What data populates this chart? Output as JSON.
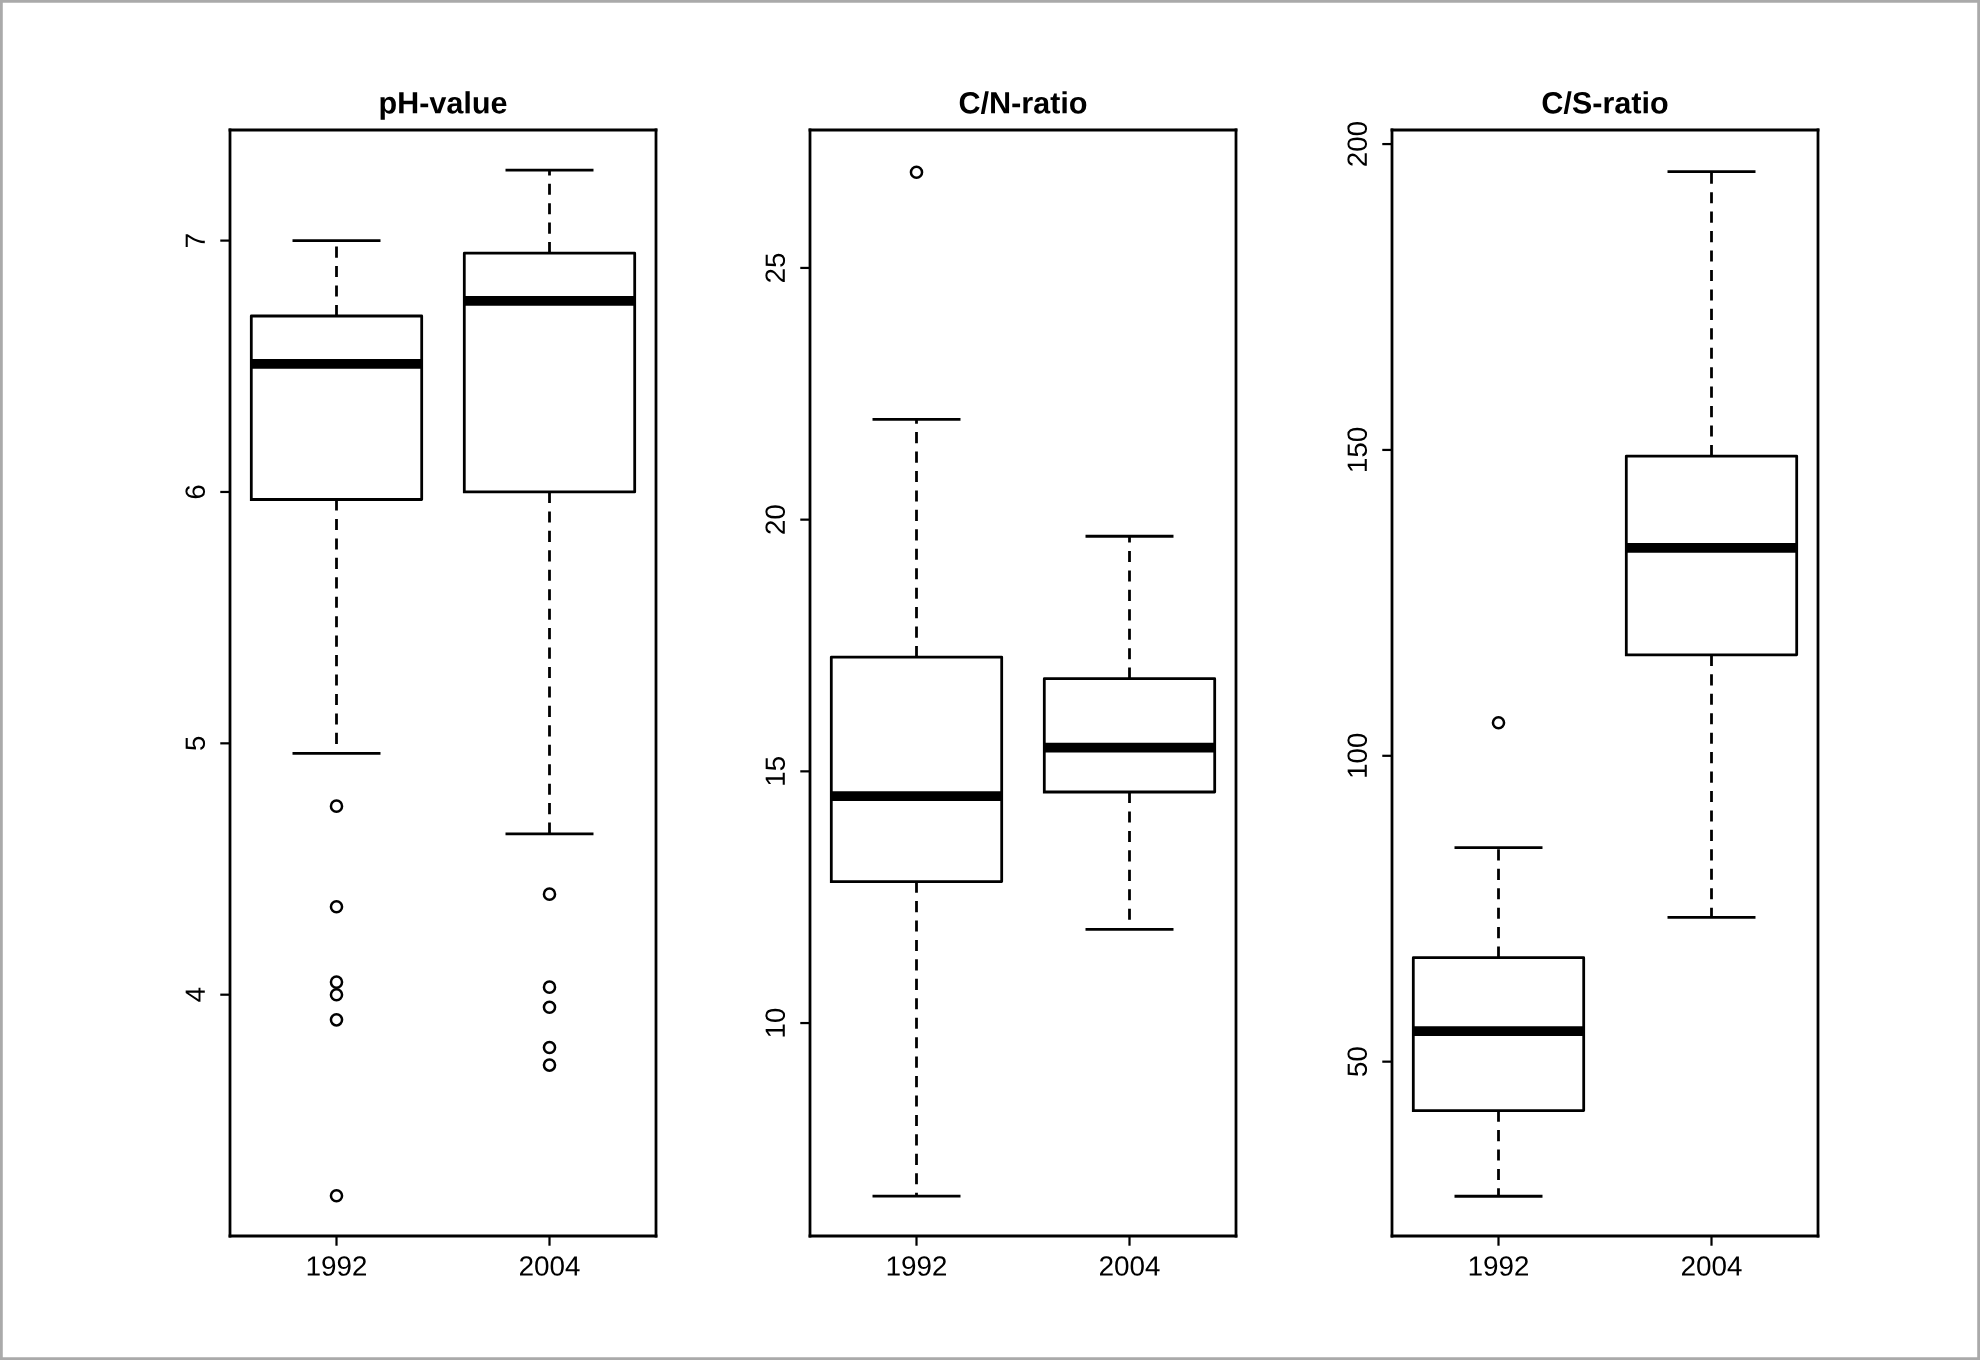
{
  "chart_data": [
    {
      "type": "box",
      "title": "pH-value",
      "categories": [
        "1992",
        "2004"
      ],
      "ylim": [
        3.04,
        7.44
      ],
      "yticks": [
        4,
        5,
        6,
        7
      ],
      "boxes": [
        {
          "low": 4.96,
          "q1": 5.97,
          "median": 6.51,
          "q3": 6.7,
          "high": 7.0,
          "outliers": [
            4.75,
            4.35,
            4.05,
            4.0,
            3.9,
            3.2
          ]
        },
        {
          "low": 4.64,
          "q1": 6.0,
          "median": 6.76,
          "q3": 6.95,
          "high": 7.28,
          "outliers": [
            4.4,
            4.03,
            3.95,
            3.79,
            3.72
          ]
        }
      ]
    },
    {
      "type": "box",
      "title": "C/N-ratio",
      "categories": [
        "1992",
        "2004"
      ],
      "ylim": [
        5.77,
        27.74
      ],
      "yticks": [
        10,
        15,
        20,
        25
      ],
      "boxes": [
        {
          "low": 6.56,
          "q1": 12.81,
          "median": 14.51,
          "q3": 17.27,
          "high": 21.99,
          "outliers": [
            26.9
          ]
        },
        {
          "low": 11.86,
          "q1": 14.59,
          "median": 15.47,
          "q3": 16.84,
          "high": 19.67
        }
      ]
    },
    {
      "type": "box",
      "title": "C/S-ratio",
      "categories": [
        "1992",
        "2004"
      ],
      "ylim": [
        21.5,
        202.3
      ],
      "yticks": [
        50,
        100,
        150,
        200
      ],
      "boxes": [
        {
          "low": 28,
          "q1": 42,
          "median": 55,
          "q3": 67,
          "high": 85,
          "outliers": [
            105.4
          ]
        },
        {
          "low": 73.6,
          "q1": 116.5,
          "median": 134,
          "q3": 149,
          "high": 195.5
        }
      ]
    }
  ]
}
